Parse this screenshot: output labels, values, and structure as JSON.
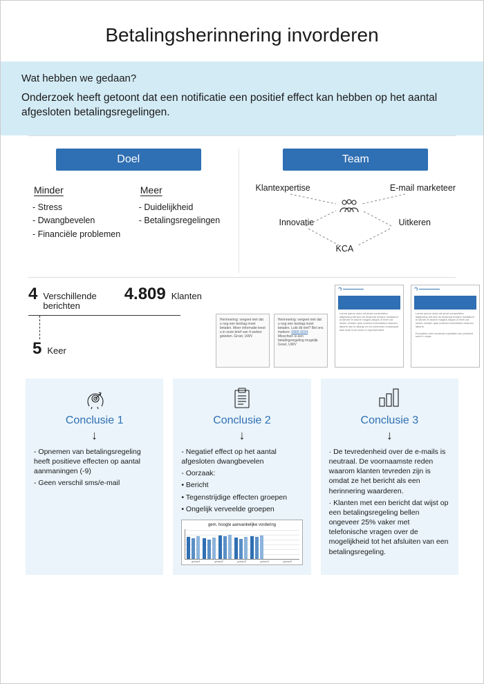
{
  "title": "Betalingsherinnering invorderen",
  "intro": {
    "subtitle": "Wat hebben we gedaan?",
    "body": "Onderzoek heeft getoont dat een notificatie een positief effect kan hebben op het aantal afgesloten betalingsregelingen."
  },
  "goal": {
    "label": "Doel",
    "minder_label": "Minder",
    "meer_label": "Meer",
    "minder_items": [
      "Stress",
      "Dwangbevelen",
      "Financiële problemen"
    ],
    "meer_items": [
      "Duidelijkheid",
      "Betalingsregelingen"
    ]
  },
  "team": {
    "label": "Team",
    "nodes": {
      "klant": "Klantexpertise",
      "email": "E-mail marketeer",
      "innovatie": "Innovatie",
      "uitkeren": "Uitkeren",
      "kca": "KCA"
    }
  },
  "stats": {
    "verschillende_num": "4",
    "verschillende_lbl": "Verschillende berichten",
    "klanten_num": "4.809",
    "klanten_lbl": "Klanten",
    "keer_num": "5",
    "keer_lbl": "Keer"
  },
  "samples": {
    "sms1": "Herinnering: vergeet niet dat u nog een bedrag moet betalen. Meer informatie leest u in onze brief van 4 weken geleden. Groet, UWV",
    "sms2_a": "Herinnering: vergeet niet dat u nog een bedrag moet betalen. Lukt dit niet? Bel ons meteen: ",
    "sms2_link": "0900-9234",
    "sms2_b": ". Misschien is een betalingsregeling mogelijk. Groet, UWV",
    "email_subject": "Herinnering betaling"
  },
  "conclusions": [
    {
      "title": "Conclusie 1",
      "bullets": [
        "Opnemen van betalingsregeling heeft positieve effecten op aantal aanmaningen (-9)",
        "Geen verschil sms/e-mail"
      ]
    },
    {
      "title": "Conclusie 2",
      "bullets": [
        "Negatief effect op het aantal afgesloten dwangbevelen",
        "Oorzaak:",
        "Bericht",
        "Tegenstrijdige effecten groepen",
        "Ongelijk verveelde groepen"
      ],
      "chart": {
        "title": "gem. hoogte aanvankelijke vordering",
        "groups": [
          {
            "bars": [
              32,
              30,
              33
            ]
          },
          {
            "bars": [
              30,
              28,
              31
            ]
          },
          {
            "bars": [
              34,
              33,
              35
            ]
          },
          {
            "bars": [
              31,
              29,
              32
            ]
          },
          {
            "bars": [
              33,
              32,
              34
            ]
          }
        ],
        "bar_colors": [
          "#2f6fb3",
          "#5a8fc6",
          "#8db4dc"
        ],
        "x_labels": [
          "groep1",
          "groep2",
          "groep3",
          "groep4",
          "groep5"
        ]
      }
    },
    {
      "title": "Conclusie 3",
      "paragraphs": [
        "De tevredenheid over de e-mails is neutraal. De voornaamste reden waarom klanten tevreden zijn is omdat ze het bericht als een herinnering waarderen.",
        "Klanten met een bericht dat wijst op een betalingsregeling bellen ongeveer 25% vaker met telefonische vragen over de mogelijkheid tot het afsluiten van een betalingsregeling."
      ]
    }
  ],
  "colors": {
    "accent": "#2f6fb3",
    "band": "#d3ebf5",
    "panel": "#eaf4fa"
  }
}
